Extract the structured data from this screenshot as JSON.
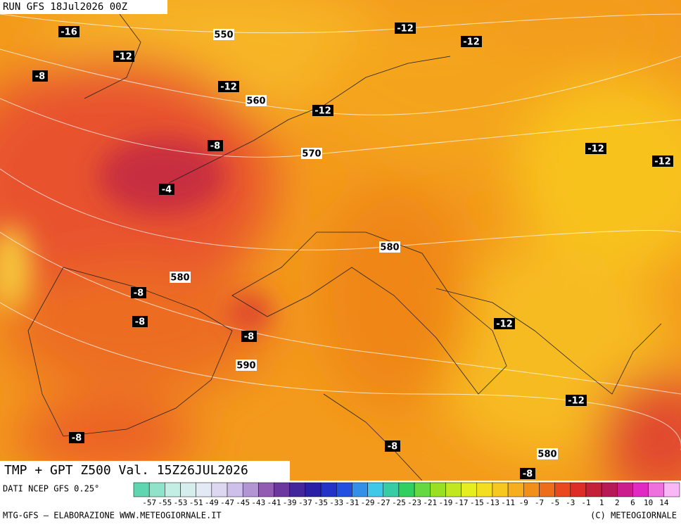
{
  "header": {
    "run": "RUN GFS 18Jul2026 00Z"
  },
  "map": {
    "labels": [
      "-16",
      "550",
      "-12",
      "-12",
      "-12",
      "-8",
      "-12",
      "560",
      "-12",
      "-8",
      "570",
      "-12",
      "-12",
      "-4",
      "580",
      "580",
      "-8",
      "-8",
      "-8",
      "-12",
      "590",
      "-12",
      "-8",
      "-8",
      "580",
      "-8"
    ]
  },
  "title": "TMP + GPT Z500 Val. 15Z26JUL2026",
  "legend": {
    "source": "DATI NCEP GFS 0.25°",
    "scale": [
      -57,
      -55,
      -53,
      -51,
      -49,
      -47,
      -45,
      -43,
      -41,
      -39,
      -37,
      -35,
      -33,
      -31,
      -29,
      -27,
      -25,
      -23,
      -21,
      -19,
      -17,
      -15,
      -13,
      -11,
      -9,
      -7,
      -5,
      -3,
      -1,
      1,
      2,
      6,
      10,
      14
    ]
  },
  "footer": {
    "left": "MTG-GFS — ELABORAZIONE WWW.METEOGIORNALE.IT",
    "right": "(C) METEOGIORNALE"
  }
}
